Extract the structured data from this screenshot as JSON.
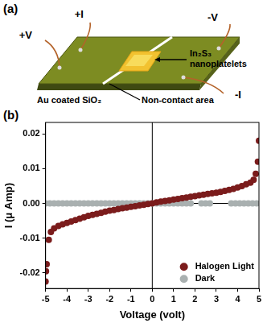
{
  "diagram": {
    "panel_label": "(a)",
    "contacts": [
      "+I",
      "+V",
      "-V",
      "-I"
    ],
    "sample_label": [
      "In₂S₃",
      "nanoplatelets"
    ],
    "substrate_label": "Au coated SiO₂",
    "gap_label": "Non-contact area"
  },
  "chart_data": {
    "type": "scatter",
    "panel_label": "(b)",
    "x_label": "Voltage (volt)",
    "y_label": "I (μ Amp)",
    "xlim": [
      -5,
      5
    ],
    "xticks": [
      -5,
      -4,
      -3,
      -2,
      -1,
      0,
      1,
      2,
      3,
      4,
      5
    ],
    "ylim": [
      -0.0245,
      0.0233
    ],
    "yticks": [
      -0.02,
      -0.01,
      {
        "value": 0,
        "label": "0.00"
      },
      0.01,
      0.02
    ],
    "grid": false,
    "legend": "lower right",
    "series": [
      {
        "name": "Halogen Light",
        "color": "#7b1c1c",
        "marker": "circle",
        "x": [
          -5.0,
          -4.98,
          -4.95,
          -4.85,
          -4.75,
          -4.6,
          -4.4,
          -4.2,
          -4.0,
          -3.8,
          -3.6,
          -3.4,
          -3.2,
          -3.0,
          -2.8,
          -2.6,
          -2.4,
          -2.2,
          -2.0,
          -1.8,
          -1.6,
          -1.4,
          -1.2,
          -1.0,
          -0.8,
          -0.6,
          -0.4,
          -0.2,
          0,
          0.2,
          0.4,
          0.6,
          0.8,
          1.0,
          1.2,
          1.4,
          1.6,
          1.8,
          2.0,
          2.2,
          2.4,
          2.6,
          2.8,
          3.0,
          3.2,
          3.4,
          3.6,
          3.8,
          4.0,
          4.2,
          4.4,
          4.6,
          4.75,
          4.85,
          4.95,
          5.0
        ],
        "values": [
          -0.0225,
          -0.0195,
          -0.0175,
          -0.0105,
          -0.0082,
          -0.0072,
          -0.0065,
          -0.006,
          -0.0056,
          -0.0052,
          -0.0048,
          -0.0044,
          -0.004,
          -0.0036,
          -0.0033,
          -0.003,
          -0.0027,
          -0.0024,
          -0.0021,
          -0.0019,
          -0.0016,
          -0.0014,
          -0.0012,
          -0.001,
          -0.0008,
          -0.0006,
          -0.0004,
          -0.0002,
          0,
          0.0003,
          0.0005,
          0.0007,
          0.0009,
          0.0011,
          0.0013,
          0.0015,
          0.0017,
          0.0019,
          0.0021,
          0.0023,
          0.0025,
          0.0027,
          0.0029,
          0.0031,
          0.0033,
          0.0036,
          0.0039,
          0.0042,
          0.0046,
          0.005,
          0.0055,
          0.006,
          0.0068,
          0.0085,
          0.012,
          0.018
        ]
      },
      {
        "name": "Dark",
        "color": "#a9b0b0",
        "marker": "circle",
        "x": [
          -5.0,
          -4.8,
          -4.6,
          -4.4,
          -4.2,
          -4.0,
          -3.8,
          -3.6,
          -3.4,
          -3.2,
          -3.0,
          -2.8,
          -2.6,
          -2.4,
          -2.2,
          -2.0,
          -1.8,
          -1.6,
          -1.4,
          -1.2,
          -1.0,
          -0.8,
          -0.6,
          -0.4,
          -0.2,
          0,
          0.2,
          0.4,
          0.6,
          0.8,
          1.0,
          1.2,
          1.4,
          1.6,
          1.8,
          2.3,
          2.5,
          2.7,
          3.7,
          3.9,
          4.1,
          4.3,
          4.5,
          4.7,
          4.9
        ],
        "values": [
          0,
          0,
          0,
          0,
          0,
          0,
          0,
          0,
          0,
          0,
          0,
          0,
          0,
          0,
          0,
          0,
          0,
          0,
          0,
          0,
          0,
          0,
          0,
          0,
          0,
          0,
          0,
          0,
          0,
          0,
          0,
          0,
          0,
          0,
          0,
          0,
          0,
          0,
          0,
          0,
          0,
          0,
          0,
          0,
          0
        ]
      }
    ]
  }
}
